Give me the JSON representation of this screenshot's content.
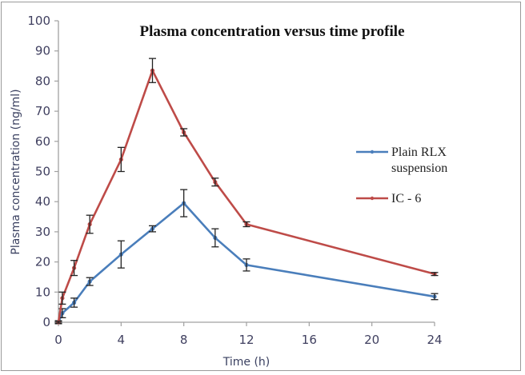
{
  "chart_data": {
    "type": "line",
    "title": "Plasma concentration versus time profile",
    "xlabel": "Time (h)",
    "ylabel": "Plasma concentration (ng/ml)",
    "xlim": [
      0,
      24
    ],
    "ylim": [
      0,
      100
    ],
    "xticks": [
      0,
      4,
      8,
      12,
      16,
      20,
      24
    ],
    "yticks": [
      0,
      10,
      20,
      30,
      40,
      50,
      60,
      70,
      80,
      90,
      100
    ],
    "grid": false,
    "legend_position": "right",
    "series": [
      {
        "name": "Plain RLX suspension",
        "color": "#4a7ebb",
        "x": [
          0,
          0.25,
          1,
          2,
          4,
          6,
          8,
          10,
          12,
          24
        ],
        "values": [
          0,
          3,
          6.5,
          13.5,
          22.5,
          31,
          39.5,
          28,
          19,
          8.5
        ],
        "errors": [
          0.5,
          1.5,
          1.5,
          1.3,
          4.5,
          1,
          4.5,
          3,
          2,
          1
        ]
      },
      {
        "name": "IC - 6",
        "color": "#be4b48",
        "x": [
          0,
          0.25,
          1,
          2,
          4,
          6,
          8,
          10,
          12,
          24
        ],
        "values": [
          0,
          8,
          18,
          32.5,
          54,
          83.5,
          63,
          46.5,
          32.5,
          16
        ],
        "errors": [
          0.3,
          2,
          2.5,
          3,
          4,
          4,
          1.2,
          1.3,
          0.8,
          0.5
        ]
      }
    ]
  }
}
